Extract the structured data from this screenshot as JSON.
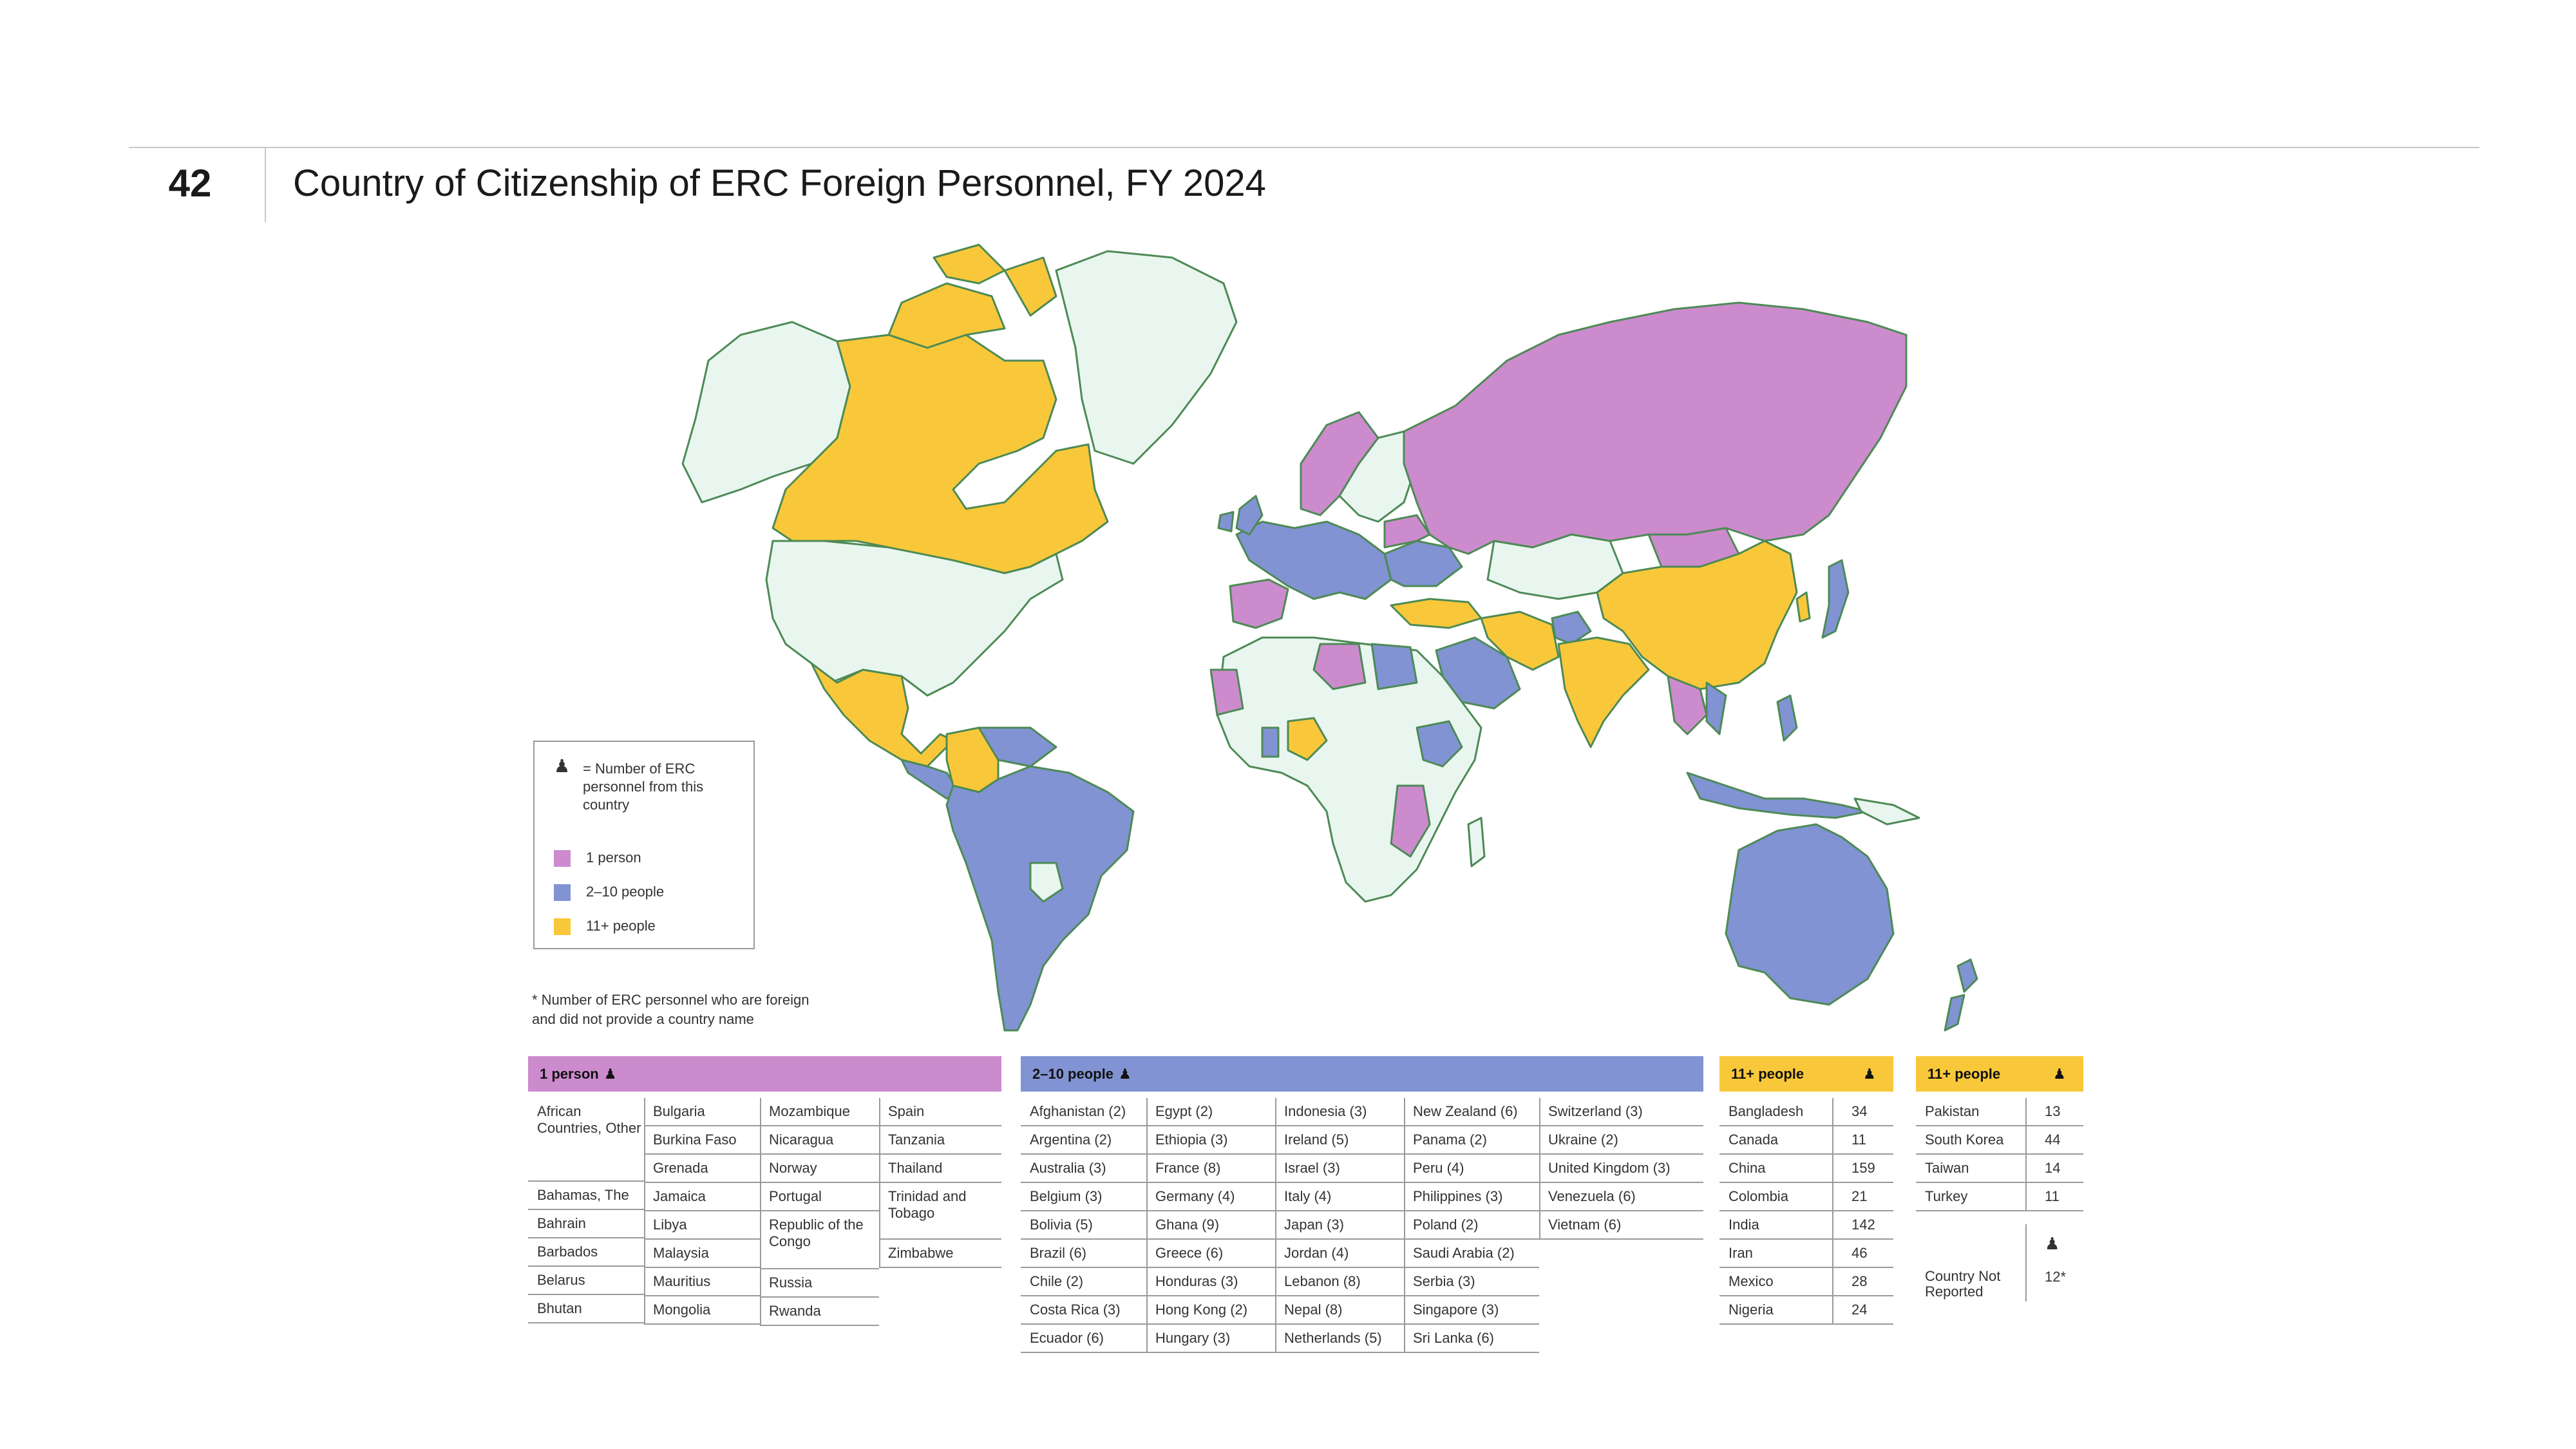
{
  "header": {
    "slide_number": "42",
    "title": "Country of Citizenship of ERC Foreign Personnel, FY 2024"
  },
  "colors": {
    "one_person": "#cc8bcd",
    "two_to_ten": "#8193d2",
    "eleven_plus": "#f9c83a",
    "no_personnel": "#e9f6f0",
    "border": "#4d8a55"
  },
  "legend": {
    "icon": "person-icon",
    "icon_glyph": "Ä",
    "description": "= Number of ERC personnel from this country",
    "items": [
      {
        "label": "1 person",
        "color": "#cc8bcd"
      },
      {
        "label": "2–10 people",
        "color": "#8193d2"
      },
      {
        "label": "11+ people",
        "color": "#f9c83a"
      }
    ]
  },
  "footnote": "* Number of ERC personnel who are foreign\n  and did not provide a country name",
  "tables": {
    "one_person": {
      "header": "1 person",
      "columns": [
        [
          "African Countries, Other",
          "Bahamas, The",
          "Bahrain",
          "Barbados",
          "Belarus",
          "Bhutan"
        ],
        [
          "Bulgaria",
          "Burkina Faso",
          "Grenada",
          "Jamaica",
          "Libya",
          "Malaysia",
          "Mauritius",
          "Mongolia"
        ],
        [
          "Mozambique",
          "Nicaragua",
          "Norway",
          "Portugal",
          "Republic of the Congo",
          "Russia",
          "Rwanda"
        ],
        [
          "Spain",
          "Tanzania",
          "Thailand",
          "Trinidad and Tobago",
          "Zimbabwe"
        ]
      ]
    },
    "two_to_ten": {
      "header": "2–10 people",
      "columns": [
        [
          "Afghanistan (2)",
          "Argentina (2)",
          "Australia (3)",
          "Belgium (3)",
          "Bolivia (5)",
          "Brazil (6)",
          "Chile (2)",
          "Costa Rica (3)",
          "Ecuador (6)"
        ],
        [
          "Egypt (2)",
          "Ethiopia (3)",
          "France (8)",
          "Germany (4)",
          "Ghana (9)",
          "Greece (6)",
          "Honduras (3)",
          "Hong Kong (2)",
          "Hungary (3)"
        ],
        [
          "Indonesia (3)",
          "Ireland (5)",
          "Israel (3)",
          "Italy (4)",
          "Japan (3)",
          "Jordan (4)",
          "Lebanon (8)",
          "Nepal (8)",
          "Netherlands (5)"
        ],
        [
          "New Zealand (6)",
          "Panama (2)",
          "Peru (4)",
          "Philippines (3)",
          "Poland (2)",
          "Saudi Arabia (2)",
          "Serbia (3)",
          "Singapore (3)",
          "Sri Lanka (6)"
        ],
        [
          "Switzerland (3)",
          "Ukraine (2)",
          "United Kingdom (3)",
          "Venezuela (6)",
          "Vietnam (6)"
        ]
      ]
    },
    "eleven_plus_a": {
      "header": "11+ people",
      "rows": [
        {
          "country": "Bangladesh",
          "count": "34"
        },
        {
          "country": "Canada",
          "count": "11"
        },
        {
          "country": "China",
          "count": "159"
        },
        {
          "country": "Colombia",
          "count": "21"
        },
        {
          "country": "India",
          "count": "142"
        },
        {
          "country": "Iran",
          "count": "46"
        },
        {
          "country": "Mexico",
          "count": "28"
        },
        {
          "country": "Nigeria",
          "count": "24"
        }
      ]
    },
    "eleven_plus_b": {
      "header": "11+ people",
      "rows": [
        {
          "country": "Pakistan",
          "count": "13"
        },
        {
          "country": "South Korea",
          "count": "44"
        },
        {
          "country": "Taiwan",
          "count": "14"
        },
        {
          "country": "Turkey",
          "count": "11"
        }
      ],
      "not_reported": {
        "country": "Country Not Reported",
        "count": "12*"
      }
    }
  }
}
